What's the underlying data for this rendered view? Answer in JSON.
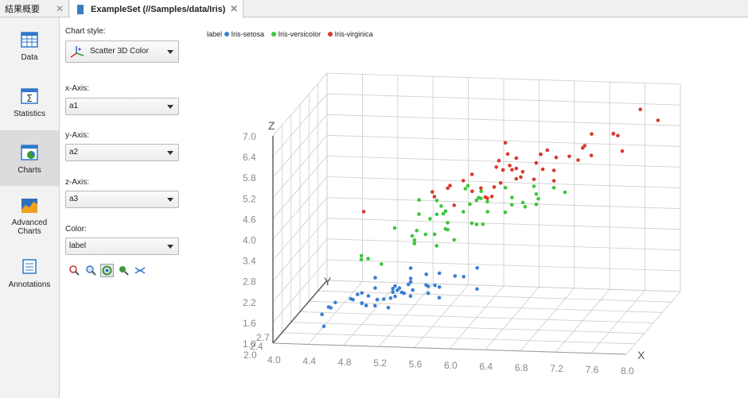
{
  "tabs": [
    {
      "label": "結果概要",
      "close": "✕"
    },
    {
      "label": "ExampleSet (//Samples/data/Iris)",
      "close": "✕"
    }
  ],
  "sidebar": {
    "items": [
      {
        "label": "Data"
      },
      {
        "label": "Statistics"
      },
      {
        "label": "Charts"
      },
      {
        "label": "Advanced\nCharts"
      },
      {
        "label": "Annotations"
      }
    ],
    "active": "Charts"
  },
  "panel": {
    "chart_style_label": "Chart style:",
    "chart_style_value": "Scatter 3D Color",
    "x_label": "x-Axis:",
    "x_value": "a1",
    "y_label": "y-Axis:",
    "y_value": "a2",
    "z_label": "z-Axis:",
    "z_value": "a3",
    "color_label": "Color:",
    "color_value": "label"
  },
  "legend": {
    "title": "label",
    "entries": [
      "Iris-setosa",
      "Iris-versicolor",
      "Iris-virginica"
    ]
  },
  "colors": {
    "Iris-setosa": "#3a7fd5",
    "Iris-versicolor": "#3cc63c",
    "Iris-virginica": "#d83a2e",
    "grid": "#cccccc"
  },
  "chart_data": {
    "type": "scatter",
    "title": "",
    "xlabel": "X",
    "ylabel": "Y",
    "zlabel": "Z",
    "x_ticks": [
      "4.0",
      "4.4",
      "4.8",
      "5.2",
      "5.6",
      "6.0",
      "6.4",
      "6.8",
      "7.2",
      "7.6",
      "8.0"
    ],
    "z_ticks": [
      "1.0",
      "1.6",
      "2.2",
      "2.8",
      "3.4",
      "4.0",
      "4.6",
      "5.2",
      "5.8",
      "6.4",
      "7.0"
    ],
    "y_ticks": [
      "2.0",
      "2.4",
      "2.7"
    ],
    "xlim": [
      4.0,
      8.0
    ],
    "ylim": [
      2.0,
      4.4
    ],
    "zlim": [
      1.0,
      7.0
    ],
    "grid": true,
    "legend_position": "top-left",
    "series": [
      {
        "name": "Iris-setosa",
        "points": [
          [
            5.1,
            3.5,
            1.4
          ],
          [
            4.9,
            3.0,
            1.4
          ],
          [
            4.7,
            3.2,
            1.3
          ],
          [
            4.6,
            3.1,
            1.5
          ],
          [
            5.0,
            3.6,
            1.4
          ],
          [
            5.4,
            3.9,
            1.7
          ],
          [
            4.6,
            3.4,
            1.4
          ],
          [
            5.0,
            3.4,
            1.5
          ],
          [
            4.4,
            2.9,
            1.4
          ],
          [
            4.9,
            3.1,
            1.5
          ],
          [
            5.4,
            3.7,
            1.5
          ],
          [
            4.8,
            3.4,
            1.6
          ],
          [
            4.8,
            3.0,
            1.4
          ],
          [
            4.3,
            3.0,
            1.1
          ],
          [
            5.8,
            4.0,
            1.2
          ],
          [
            5.7,
            4.4,
            1.5
          ],
          [
            5.4,
            3.9,
            1.3
          ],
          [
            5.1,
            3.5,
            1.4
          ],
          [
            5.7,
            3.8,
            1.7
          ],
          [
            5.1,
            3.8,
            1.5
          ],
          [
            5.4,
            3.4,
            1.7
          ],
          [
            5.1,
            3.7,
            1.5
          ],
          [
            4.6,
            3.6,
            1.0
          ],
          [
            5.1,
            3.3,
            1.7
          ],
          [
            4.8,
            3.4,
            1.9
          ],
          [
            5.0,
            3.0,
            1.6
          ],
          [
            5.0,
            3.4,
            1.6
          ],
          [
            5.2,
            3.5,
            1.5
          ],
          [
            5.2,
            3.4,
            1.4
          ],
          [
            4.7,
            3.2,
            1.6
          ],
          [
            4.8,
            3.1,
            1.6
          ],
          [
            5.4,
            3.4,
            1.5
          ],
          [
            5.2,
            4.1,
            1.5
          ],
          [
            5.5,
            4.2,
            1.4
          ],
          [
            4.9,
            3.1,
            1.5
          ],
          [
            5.0,
            3.2,
            1.2
          ],
          [
            5.5,
            3.5,
            1.3
          ],
          [
            4.4,
            3.0,
            1.3
          ],
          [
            5.1,
            3.4,
            1.5
          ],
          [
            5.0,
            3.5,
            1.3
          ],
          [
            4.5,
            2.3,
            1.3
          ],
          [
            4.4,
            3.2,
            1.3
          ],
          [
            5.0,
            3.5,
            1.6
          ],
          [
            5.1,
            3.8,
            1.9
          ],
          [
            4.8,
            3.0,
            1.4
          ],
          [
            5.1,
            3.8,
            1.6
          ],
          [
            4.6,
            3.2,
            1.4
          ],
          [
            5.3,
            3.7,
            1.5
          ],
          [
            5.0,
            3.3,
            1.4
          ]
        ]
      },
      {
        "name": "Iris-versicolor",
        "points": [
          [
            7.0,
            3.2,
            4.7
          ],
          [
            6.4,
            3.2,
            4.5
          ],
          [
            6.9,
            3.1,
            4.9
          ],
          [
            5.5,
            2.3,
            4.0
          ],
          [
            6.5,
            2.8,
            4.6
          ],
          [
            5.7,
            2.8,
            4.5
          ],
          [
            6.3,
            3.3,
            4.7
          ],
          [
            4.9,
            2.4,
            3.3
          ],
          [
            6.6,
            2.9,
            4.6
          ],
          [
            5.2,
            2.7,
            3.9
          ],
          [
            5.0,
            2.0,
            3.5
          ],
          [
            5.9,
            3.0,
            4.2
          ],
          [
            6.0,
            2.2,
            4.0
          ],
          [
            6.1,
            2.9,
            4.7
          ],
          [
            5.6,
            2.9,
            3.6
          ],
          [
            6.7,
            3.1,
            4.4
          ],
          [
            5.6,
            3.0,
            4.5
          ],
          [
            5.8,
            2.7,
            4.1
          ],
          [
            6.2,
            2.2,
            4.5
          ],
          [
            5.6,
            2.5,
            3.9
          ],
          [
            5.9,
            3.2,
            4.8
          ],
          [
            6.1,
            2.8,
            4.0
          ],
          [
            6.3,
            2.5,
            4.9
          ],
          [
            6.1,
            2.8,
            4.7
          ],
          [
            6.4,
            2.9,
            4.3
          ],
          [
            6.6,
            3.0,
            4.4
          ],
          [
            6.8,
            2.8,
            4.8
          ],
          [
            6.7,
            3.0,
            5.0
          ],
          [
            6.0,
            2.9,
            4.5
          ],
          [
            5.7,
            2.6,
            3.5
          ],
          [
            5.5,
            2.4,
            3.8
          ],
          [
            5.5,
            2.4,
            3.7
          ],
          [
            5.8,
            2.7,
            3.9
          ],
          [
            6.0,
            2.7,
            5.1
          ],
          [
            5.4,
            3.0,
            4.5
          ],
          [
            6.0,
            3.4,
            4.5
          ],
          [
            6.7,
            3.1,
            4.7
          ],
          [
            6.3,
            2.3,
            4.4
          ],
          [
            5.6,
            3.0,
            4.1
          ],
          [
            5.5,
            2.5,
            4.0
          ],
          [
            5.5,
            2.6,
            4.4
          ],
          [
            6.1,
            3.0,
            4.6
          ],
          [
            5.8,
            2.6,
            4.0
          ],
          [
            5.0,
            2.3,
            3.3
          ],
          [
            5.6,
            2.7,
            4.2
          ],
          [
            5.7,
            3.0,
            4.2
          ],
          [
            5.7,
            2.9,
            4.2
          ],
          [
            6.2,
            2.9,
            4.3
          ],
          [
            5.1,
            2.5,
            3.0
          ]
        ]
      },
      {
        "name": "Iris-virginica",
        "points": [
          [
            6.3,
            3.3,
            6.0
          ],
          [
            5.8,
            2.7,
            5.1
          ],
          [
            7.1,
            3.0,
            5.9
          ],
          [
            6.3,
            2.9,
            5.6
          ],
          [
            6.5,
            3.0,
            5.8
          ],
          [
            7.6,
            3.0,
            6.6
          ],
          [
            4.9,
            2.5,
            4.5
          ],
          [
            7.3,
            2.9,
            6.3
          ],
          [
            6.7,
            2.5,
            5.8
          ],
          [
            7.2,
            3.6,
            6.1
          ],
          [
            6.5,
            3.2,
            5.1
          ],
          [
            6.4,
            2.7,
            5.3
          ],
          [
            6.8,
            3.0,
            5.5
          ],
          [
            5.7,
            2.5,
            5.0
          ],
          [
            5.8,
            2.8,
            5.1
          ],
          [
            6.4,
            3.2,
            5.3
          ],
          [
            6.5,
            3.0,
            5.5
          ],
          [
            7.7,
            3.8,
            6.7
          ],
          [
            7.7,
            2.6,
            6.9
          ],
          [
            6.0,
            2.2,
            5.0
          ],
          [
            6.9,
            3.2,
            5.7
          ],
          [
            5.6,
            2.8,
            4.9
          ],
          [
            7.7,
            2.8,
            6.7
          ],
          [
            6.3,
            2.7,
            4.9
          ],
          [
            6.7,
            3.3,
            5.7
          ],
          [
            7.2,
            3.2,
            6.0
          ],
          [
            6.2,
            2.8,
            4.8
          ],
          [
            6.1,
            3.0,
            4.9
          ],
          [
            6.4,
            2.8,
            5.6
          ],
          [
            7.2,
            3.0,
            5.8
          ],
          [
            7.4,
            2.8,
            6.1
          ],
          [
            7.9,
            3.8,
            6.4
          ],
          [
            6.4,
            2.8,
            5.6
          ],
          [
            6.3,
            2.8,
            5.1
          ],
          [
            6.1,
            2.6,
            5.6
          ],
          [
            7.7,
            3.0,
            6.1
          ],
          [
            6.3,
            3.4,
            5.6
          ],
          [
            6.4,
            3.1,
            5.5
          ],
          [
            6.0,
            3.0,
            4.8
          ],
          [
            6.9,
            3.1,
            5.4
          ],
          [
            6.7,
            3.1,
            5.6
          ],
          [
            6.9,
            3.1,
            5.1
          ],
          [
            6.8,
            3.2,
            5.9
          ],
          [
            6.7,
            3.3,
            5.7
          ],
          [
            6.7,
            3.0,
            5.2
          ],
          [
            6.3,
            2.5,
            5.0
          ],
          [
            6.5,
            3.0,
            5.2
          ],
          [
            6.2,
            3.4,
            5.4
          ],
          [
            5.9,
            3.0,
            5.1
          ]
        ]
      }
    ]
  }
}
